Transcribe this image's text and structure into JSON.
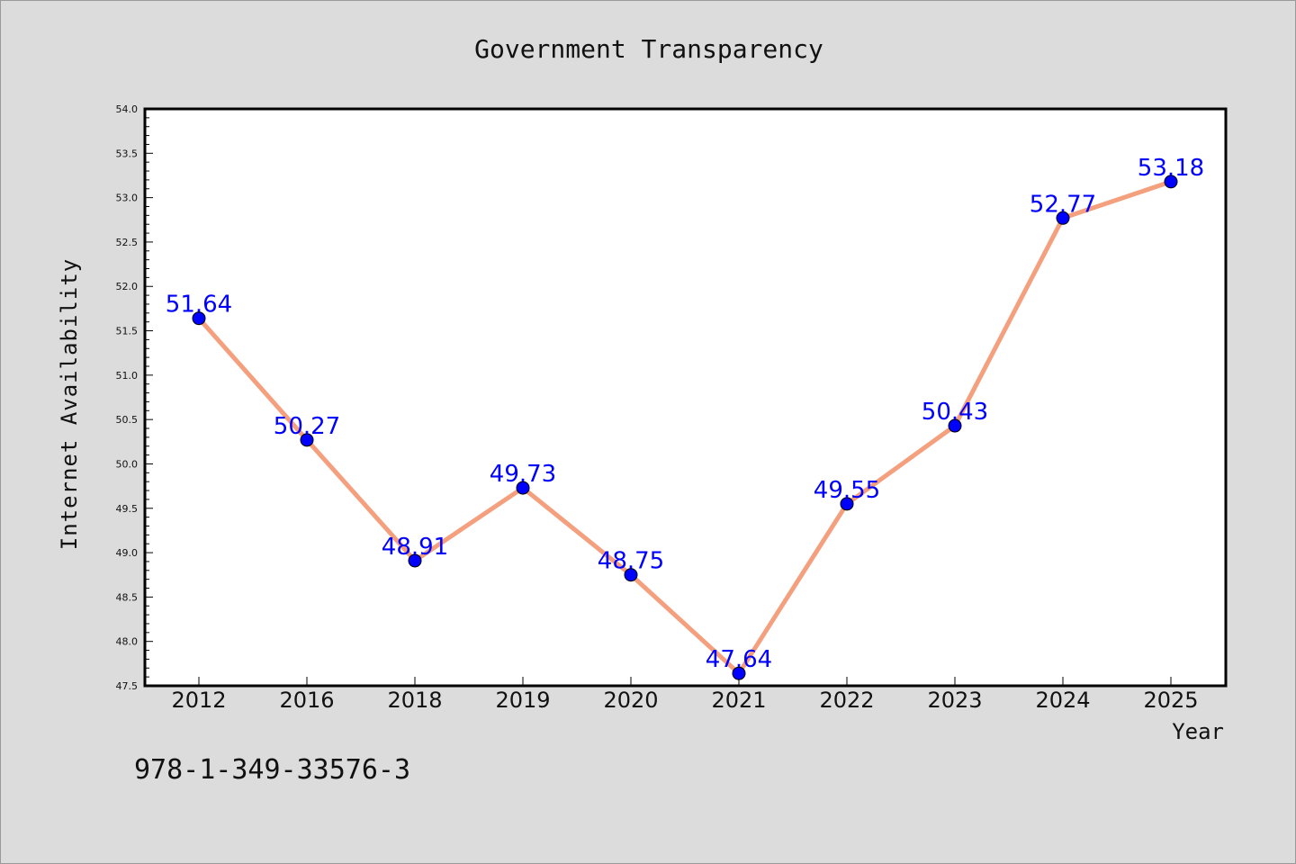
{
  "chart_data": {
    "type": "line",
    "title": "Government Transparency",
    "xlabel": "Year",
    "ylabel": "Internet Availability",
    "categories": [
      "2012",
      "2016",
      "2018",
      "2019",
      "2020",
      "2021",
      "2022",
      "2023",
      "2024",
      "2025"
    ],
    "values": [
      51.64,
      50.27,
      48.91,
      49.73,
      48.75,
      47.64,
      49.55,
      50.43,
      52.77,
      53.18
    ],
    "data_labels": [
      "51.64",
      "50.27",
      "48.91",
      "49.73",
      "48.75",
      "47.64",
      "49.55",
      "50.43",
      "52.77",
      "53.18"
    ],
    "ylim": [
      47.5,
      54.0
    ],
    "yticks": [
      "47.5",
      "48.0",
      "48.5",
      "49.0",
      "49.5",
      "50.0",
      "50.5",
      "51.0",
      "51.5",
      "52.0",
      "52.5",
      "53.0",
      "53.5",
      "54.0"
    ],
    "grid": false,
    "line_color": "#f4a07e",
    "marker_color": "#0000ff",
    "label_color": "#0000ff"
  },
  "footer": {
    "isbn": "978-1-349-33576-3"
  }
}
